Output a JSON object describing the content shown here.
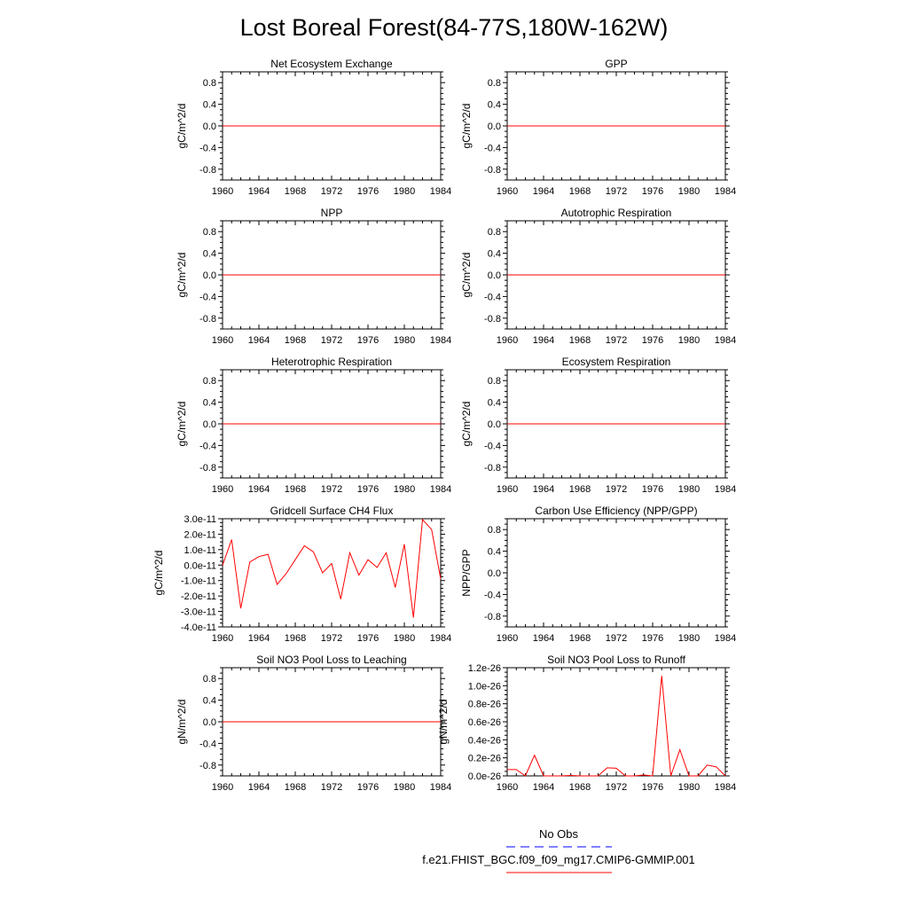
{
  "title": "Lost Boreal Forest(84-77S,180W-162W)",
  "colors": {
    "model": "#ff0000",
    "obs": "#0000ff",
    "axis": "#000000"
  },
  "legend": {
    "obs_label": "No Obs",
    "model_label": "f.e21.FHIST_BGC.f09_f09_mg17.CMIP6-GMMIP.001"
  },
  "chart_data": [
    {
      "type": "line",
      "title": "Net Ecosystem Exchange",
      "ylabel": "gC/m^2/d",
      "xlim": [
        1960,
        1984
      ],
      "ylim": [
        -1,
        1
      ],
      "xticks": [
        1960,
        1964,
        1968,
        1972,
        1976,
        1980,
        1984
      ],
      "yticks": [
        -0.8,
        -0.4,
        0.0,
        0.4,
        0.8
      ],
      "ytick_labels": [
        "-0.8",
        "-0.4",
        "0.0",
        "0.4",
        "0.8"
      ],
      "series": [
        {
          "name": "f.e21.FHIST_BGC.f09_f09_mg17.CMIP6-GMMIP.001",
          "x": [
            1960,
            1984
          ],
          "values": [
            0,
            0
          ]
        }
      ]
    },
    {
      "type": "line",
      "title": "GPP",
      "ylabel": "gC/m^2/d",
      "xlim": [
        1960,
        1984
      ],
      "ylim": [
        -1,
        1
      ],
      "xticks": [
        1960,
        1964,
        1968,
        1972,
        1976,
        1980,
        1984
      ],
      "yticks": [
        -0.8,
        -0.4,
        0.0,
        0.4,
        0.8
      ],
      "ytick_labels": [
        "-0.8",
        "-0.4",
        "0.0",
        "0.4",
        "0.8"
      ],
      "series": [
        {
          "name": "f.e21.FHIST_BGC.f09_f09_mg17.CMIP6-GMMIP.001",
          "x": [
            1960,
            1984
          ],
          "values": [
            0,
            0
          ]
        }
      ]
    },
    {
      "type": "line",
      "title": "NPP",
      "ylabel": "gC/m^2/d",
      "xlim": [
        1960,
        1984
      ],
      "ylim": [
        -1,
        1
      ],
      "xticks": [
        1960,
        1964,
        1968,
        1972,
        1976,
        1980,
        1984
      ],
      "yticks": [
        -0.8,
        -0.4,
        0.0,
        0.4,
        0.8
      ],
      "ytick_labels": [
        "-0.8",
        "-0.4",
        "0.0",
        "0.4",
        "0.8"
      ],
      "series": [
        {
          "name": "f.e21.FHIST_BGC.f09_f09_mg17.CMIP6-GMMIP.001",
          "x": [
            1960,
            1984
          ],
          "values": [
            0,
            0
          ]
        }
      ]
    },
    {
      "type": "line",
      "title": "Autotrophic Respiration",
      "ylabel": "gC/m^2/d",
      "xlim": [
        1960,
        1984
      ],
      "ylim": [
        -1,
        1
      ],
      "xticks": [
        1960,
        1964,
        1968,
        1972,
        1976,
        1980,
        1984
      ],
      "yticks": [
        -0.8,
        -0.4,
        0.0,
        0.4,
        0.8
      ],
      "ytick_labels": [
        "-0.8",
        "-0.4",
        "0.0",
        "0.4",
        "0.8"
      ],
      "series": [
        {
          "name": "f.e21.FHIST_BGC.f09_f09_mg17.CMIP6-GMMIP.001",
          "x": [
            1960,
            1984
          ],
          "values": [
            0,
            0
          ]
        }
      ]
    },
    {
      "type": "line",
      "title": "Heterotrophic Respiration",
      "ylabel": "gC/m^2/d",
      "xlim": [
        1960,
        1984
      ],
      "ylim": [
        -1,
        1
      ],
      "xticks": [
        1960,
        1964,
        1968,
        1972,
        1976,
        1980,
        1984
      ],
      "yticks": [
        -0.8,
        -0.4,
        0.0,
        0.4,
        0.8
      ],
      "ytick_labels": [
        "-0.8",
        "-0.4",
        "0.0",
        "0.4",
        "0.8"
      ],
      "series": [
        {
          "name": "f.e21.FHIST_BGC.f09_f09_mg17.CMIP6-GMMIP.001",
          "x": [
            1960,
            1984
          ],
          "values": [
            0,
            0
          ]
        }
      ]
    },
    {
      "type": "line",
      "title": "Ecosystem Respiration",
      "ylabel": "gC/m^2/d",
      "xlim": [
        1960,
        1984
      ],
      "ylim": [
        -1,
        1
      ],
      "xticks": [
        1960,
        1964,
        1968,
        1972,
        1976,
        1980,
        1984
      ],
      "yticks": [
        -0.8,
        -0.4,
        0.0,
        0.4,
        0.8
      ],
      "ytick_labels": [
        "-0.8",
        "-0.4",
        "0.0",
        "0.4",
        "0.8"
      ],
      "series": [
        {
          "name": "f.e21.FHIST_BGC.f09_f09_mg17.CMIP6-GMMIP.001",
          "x": [
            1960,
            1984
          ],
          "values": [
            0,
            0
          ]
        }
      ]
    },
    {
      "type": "line",
      "title": "Gridcell Surface CH4 Flux",
      "ylabel": "gC/m^2/d",
      "xlim": [
        1960,
        1984
      ],
      "ylim": [
        -4e-11,
        3e-11
      ],
      "xticks": [
        1960,
        1964,
        1968,
        1972,
        1976,
        1980,
        1984
      ],
      "yticks": [
        -4e-11,
        -3e-11,
        -2e-11,
        -1e-11,
        0.0,
        1e-11,
        2e-11,
        3e-11
      ],
      "ytick_labels": [
        "-4.0e-11",
        "-3.0e-11",
        "-2.0e-11",
        "-1.0e-11",
        "0.0e-11",
        "1.0e-11",
        "2.0e-11",
        "3.0e-11"
      ],
      "series": [
        {
          "name": "f.e21.FHIST_BGC.f09_f09_mg17.CMIP6-GMMIP.001",
          "x": [
            1960,
            1961,
            1962,
            1963,
            1964,
            1965,
            1966,
            1967,
            1968,
            1969,
            1970,
            1971,
            1972,
            1973,
            1974,
            1975,
            1976,
            1977,
            1978,
            1979,
            1980,
            1981,
            1982,
            1983,
            1984
          ],
          "values": [
            0.0,
            1.65e-11,
            -2.8e-11,
            2e-12,
            5.5e-12,
            7e-12,
            -1.25e-11,
            -5.5e-12,
            3.5e-12,
            1.25e-11,
            8.5e-12,
            -5e-12,
            1e-12,
            -2.2e-11,
            8e-12,
            -6.5e-12,
            3.5e-12,
            -1.5e-12,
            8e-12,
            -1.45e-11,
            1.35e-11,
            -3.4e-11,
            2.95e-11,
            2.3e-11,
            -9e-12
          ]
        }
      ]
    },
    {
      "type": "line",
      "title": "Carbon Use Efficiency (NPP/GPP)",
      "ylabel": "NPP/GPP",
      "xlim": [
        1960,
        1984
      ],
      "ylim": [
        -1,
        1
      ],
      "xticks": [
        1960,
        1964,
        1968,
        1972,
        1976,
        1980,
        1984
      ],
      "yticks": [
        -0.8,
        -0.4,
        0.0,
        0.4,
        0.8
      ],
      "ytick_labels": [
        "-0.8",
        "-0.4",
        "0.0",
        "0.4",
        "0.8"
      ],
      "series": []
    },
    {
      "type": "line",
      "title": "Soil NO3 Pool Loss to Leaching",
      "ylabel": "gN/m^2/d",
      "xlim": [
        1960,
        1984
      ],
      "ylim": [
        -1,
        1
      ],
      "xticks": [
        1960,
        1964,
        1968,
        1972,
        1976,
        1980,
        1984
      ],
      "yticks": [
        -0.8,
        -0.4,
        0.0,
        0.4,
        0.8
      ],
      "ytick_labels": [
        "-0.8",
        "-0.4",
        "0.0",
        "0.4",
        "0.8"
      ],
      "series": [
        {
          "name": "f.e21.FHIST_BGC.f09_f09_mg17.CMIP6-GMMIP.001",
          "x": [
            1960,
            1984
          ],
          "values": [
            0,
            0
          ]
        }
      ]
    },
    {
      "type": "line",
      "title": "Soil NO3 Pool Loss to Runoff",
      "ylabel": "gN/m^2/d",
      "xlim": [
        1960,
        1984
      ],
      "ylim": [
        0,
        1.2e-26
      ],
      "xticks": [
        1960,
        1964,
        1968,
        1972,
        1976,
        1980,
        1984
      ],
      "yticks": [
        0.0,
        2e-27,
        4e-27,
        6e-27,
        8e-27,
        1e-26,
        1.2e-26
      ],
      "ytick_labels": [
        "0.0e-26",
        "0.2e-26",
        "0.4e-26",
        "0.6e-26",
        "0.8e-26",
        "1.0e-26",
        "1.2e-26"
      ],
      "series": [
        {
          "name": "f.e21.FHIST_BGC.f09_f09_mg17.CMIP6-GMMIP.001",
          "x": [
            1960,
            1961,
            1962,
            1963,
            1964,
            1965,
            1966,
            1967,
            1968,
            1969,
            1970,
            1971,
            1972,
            1973,
            1974,
            1975,
            1976,
            1977,
            1978,
            1979,
            1980,
            1981,
            1982,
            1983,
            1984
          ],
          "values": [
            7e-28,
            7e-28,
            0.0,
            2.3e-27,
            0.0,
            0.0,
            0.0,
            5e-29,
            0.0,
            0.0,
            0.0,
            9e-28,
            8.5e-28,
            0.0,
            0.0,
            1e-28,
            0.0,
            1.11e-26,
            0.0,
            2.9e-27,
            0.0,
            0.0,
            1.2e-27,
            1e-27,
            0.0
          ]
        }
      ]
    }
  ]
}
